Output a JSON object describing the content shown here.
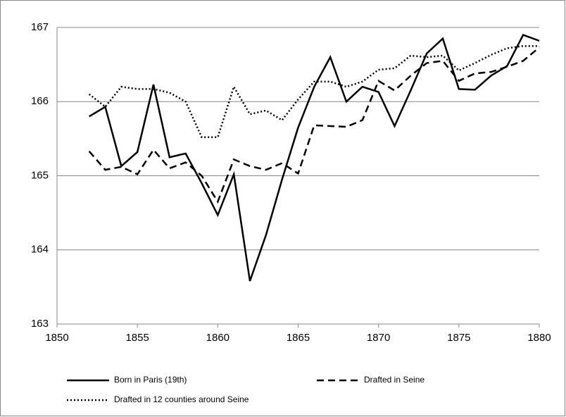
{
  "chart_data": {
    "type": "line",
    "x": [
      1852,
      1853,
      1854,
      1855,
      1856,
      1857,
      1858,
      1859,
      1860,
      1861,
      1862,
      1863,
      1864,
      1865,
      1866,
      1867,
      1868,
      1869,
      1870,
      1871,
      1872,
      1873,
      1874,
      1875,
      1876,
      1877,
      1878,
      1879,
      1880
    ],
    "series": [
      {
        "name": "Born in Paris (19th)",
        "color": "#000000",
        "dash": "solid",
        "values": [
          165.8,
          165.93,
          165.13,
          165.32,
          166.23,
          165.25,
          165.3,
          164.9,
          164.47,
          165.02,
          163.58,
          164.2,
          164.95,
          165.65,
          166.2,
          166.6,
          166.0,
          166.2,
          166.13,
          165.67,
          166.15,
          166.65,
          166.85,
          166.17,
          166.16,
          166.35,
          166.48,
          166.9,
          166.82
        ]
      },
      {
        "name": "Drafted in Seine",
        "color": "#000000",
        "dash": "dashed",
        "values": [
          165.33,
          165.08,
          165.12,
          165.02,
          165.35,
          165.1,
          165.18,
          165.0,
          164.65,
          165.22,
          165.13,
          165.08,
          165.17,
          165.03,
          165.68,
          165.67,
          165.66,
          165.75,
          166.28,
          166.15,
          166.35,
          166.52,
          166.55,
          166.28,
          166.38,
          166.4,
          166.47,
          166.55,
          166.73
        ]
      },
      {
        "name": "Drafted in 12 counties around Seine",
        "color": "#000000",
        "dash": "dotted",
        "values": [
          166.1,
          165.93,
          166.2,
          166.17,
          166.17,
          166.12,
          166.0,
          165.52,
          165.52,
          166.2,
          165.83,
          165.88,
          165.75,
          166.03,
          166.27,
          166.27,
          166.2,
          166.27,
          166.43,
          166.45,
          166.62,
          166.6,
          166.62,
          166.42,
          166.52,
          166.63,
          166.72,
          166.75,
          166.75
        ]
      }
    ],
    "xlim": [
      1850,
      1880
    ],
    "xticks": [
      1850,
      1855,
      1860,
      1865,
      1870,
      1875,
      1880
    ],
    "ylim": [
      163,
      167
    ],
    "yticks": [
      163,
      164,
      165,
      166,
      167
    ],
    "grid": true,
    "legend": "bottom"
  }
}
